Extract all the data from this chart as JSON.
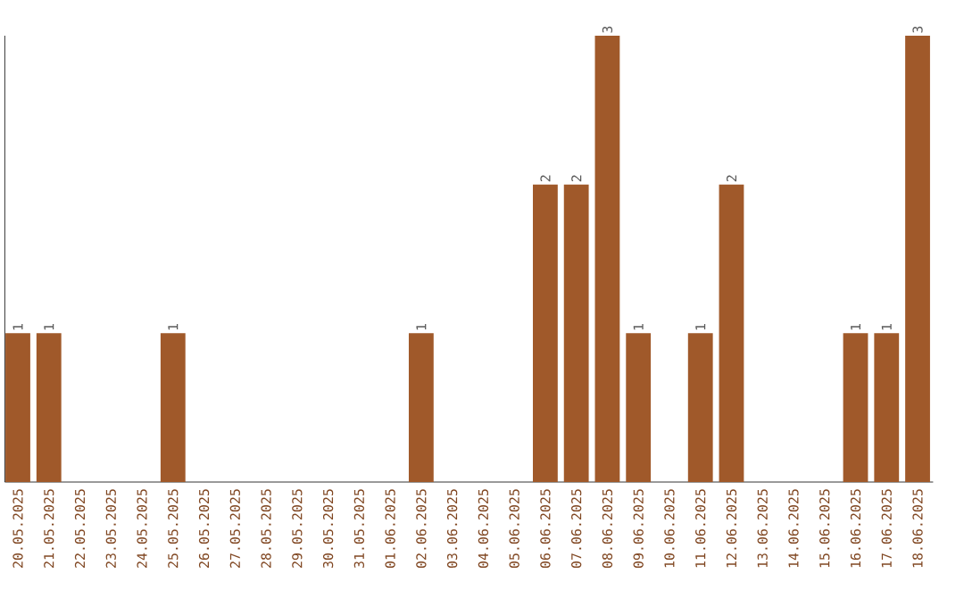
{
  "chart_data": {
    "type": "bar",
    "categories": [
      "20.05.2025",
      "21.05.2025",
      "22.05.2025",
      "23.05.2025",
      "24.05.2025",
      "25.05.2025",
      "26.05.2025",
      "27.05.2025",
      "28.05.2025",
      "29.05.2025",
      "30.05.2025",
      "31.05.2025",
      "01.06.2025",
      "02.06.2025",
      "03.06.2025",
      "04.06.2025",
      "05.06.2025",
      "06.06.2025",
      "07.06.2025",
      "08.06.2025",
      "09.06.2025",
      "10.06.2025",
      "11.06.2025",
      "12.06.2025",
      "13.06.2025",
      "14.06.2025",
      "15.06.2025",
      "16.06.2025",
      "17.06.2025",
      "18.06.2025"
    ],
    "values": [
      1,
      1,
      0,
      0,
      0,
      1,
      0,
      0,
      0,
      0,
      0,
      0,
      0,
      1,
      0,
      0,
      0,
      2,
      2,
      3,
      1,
      0,
      1,
      2,
      0,
      0,
      0,
      1,
      1,
      3
    ],
    "value_labels": [
      "1",
      "1",
      null,
      null,
      null,
      "1",
      null,
      null,
      null,
      null,
      null,
      null,
      null,
      "1",
      null,
      null,
      null,
      "2",
      "2",
      "3",
      "1",
      null,
      "1",
      "2",
      null,
      null,
      null,
      "1",
      "1",
      "3"
    ],
    "color": "#a0592a",
    "ylim": [
      0,
      3
    ]
  }
}
